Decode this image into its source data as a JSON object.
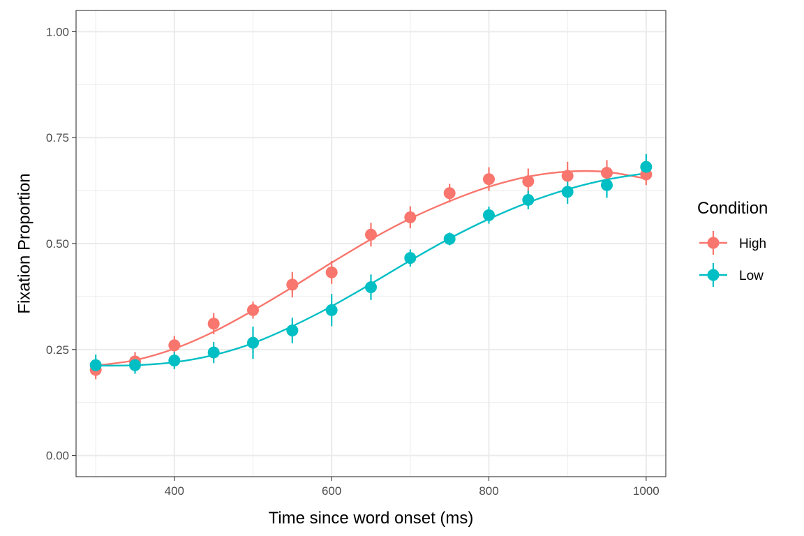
{
  "chart_data": {
    "type": "line",
    "xlabel": "Time since word onset (ms)",
    "ylabel": "Fixation Proportion",
    "xlim": [
      275,
      1025
    ],
    "ylim": [
      -0.05,
      1.05
    ],
    "x_ticks": [
      400,
      600,
      800,
      1000
    ],
    "x_tick_labels": [
      "400",
      "600",
      "800",
      "1000"
    ],
    "y_ticks": [
      0,
      0.25,
      0.5,
      0.75,
      1.0
    ],
    "y_tick_labels": [
      "0.00",
      "0.25",
      "0.50",
      "0.75",
      "1.00"
    ],
    "x_minor_ticks": [
      300,
      500,
      700,
      900
    ],
    "y_minor_ticks": [
      0.125,
      0.375,
      0.625,
      0.875
    ],
    "grid": true,
    "legend": {
      "title": "Condition",
      "position": "right"
    },
    "x": [
      300,
      350,
      400,
      450,
      500,
      550,
      600,
      650,
      700,
      750,
      800,
      850,
      900,
      950,
      1000
    ],
    "series": [
      {
        "name": "High",
        "color": "#F8766D",
        "points": [
          0.202,
          0.222,
          0.26,
          0.311,
          0.343,
          0.403,
          0.432,
          0.521,
          0.562,
          0.619,
          0.652,
          0.647,
          0.66,
          0.667,
          0.663
        ],
        "errors": [
          0.022,
          0.022,
          0.022,
          0.025,
          0.02,
          0.03,
          0.027,
          0.028,
          0.026,
          0.022,
          0.028,
          0.03,
          0.033,
          0.03,
          0.025
        ],
        "fit": [
          0.212,
          0.225,
          0.252,
          0.292,
          0.342,
          0.397,
          0.455,
          0.51,
          0.559,
          0.6,
          0.634,
          0.658,
          0.67,
          0.669,
          0.653
        ]
      },
      {
        "name": "Low",
        "color": "#00BFC4",
        "points": [
          0.213,
          0.213,
          0.224,
          0.243,
          0.266,
          0.295,
          0.343,
          0.397,
          0.466,
          0.511,
          0.567,
          0.603,
          0.622,
          0.638,
          0.681
        ],
        "errors": [
          0.025,
          0.02,
          0.02,
          0.025,
          0.038,
          0.03,
          0.038,
          0.03,
          0.02,
          0.015,
          0.02,
          0.022,
          0.028,
          0.03,
          0.03
        ],
        "fit": [
          0.212,
          0.213,
          0.22,
          0.237,
          0.265,
          0.305,
          0.352,
          0.405,
          0.46,
          0.512,
          0.558,
          0.597,
          0.628,
          0.651,
          0.666
        ]
      }
    ]
  }
}
